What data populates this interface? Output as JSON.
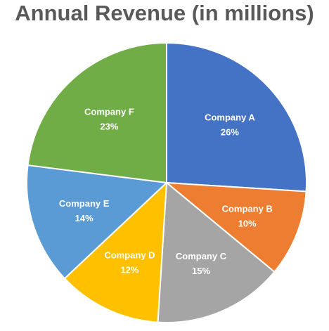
{
  "chart_data": {
    "type": "pie",
    "title": "Annual Revenue (in millions)",
    "categories": [
      "Company A",
      "Company B",
      "Company C",
      "Company D",
      "Company E",
      "Company F"
    ],
    "values": [
      26,
      10,
      15,
      12,
      14,
      23
    ],
    "value_labels": [
      "26%",
      "10%",
      "15%",
      "12%",
      "14%",
      "23%"
    ],
    "colors": [
      "#4472c4",
      "#ed7d31",
      "#a5a5a5",
      "#ffc000",
      "#5b9bd5",
      "#70ad47"
    ],
    "start_angle_deg": 0,
    "direction": "clockwise",
    "legend": "none"
  }
}
